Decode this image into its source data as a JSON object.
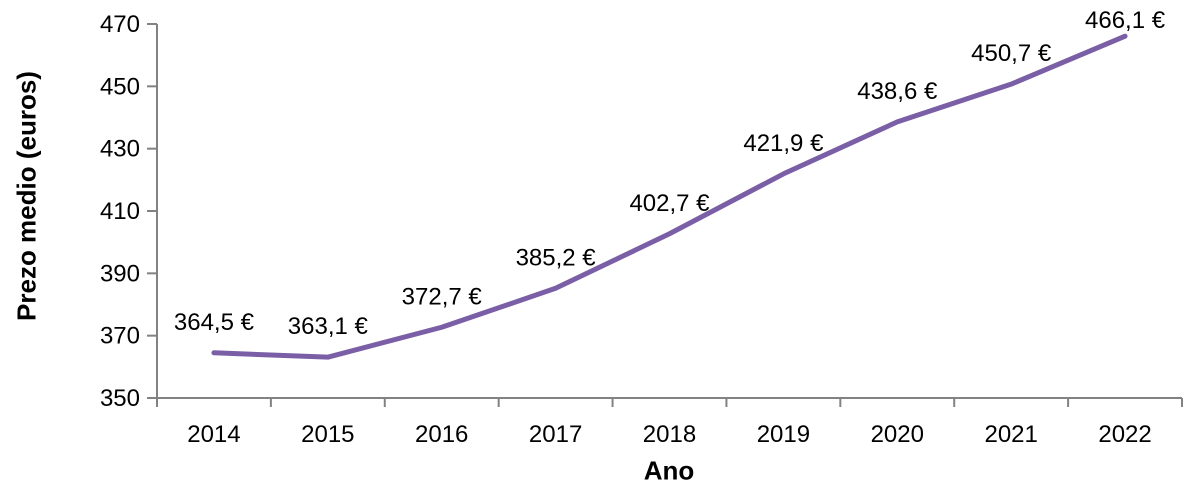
{
  "chart_data": {
    "type": "line",
    "categories": [
      "2014",
      "2015",
      "2016",
      "2017",
      "2018",
      "2019",
      "2020",
      "2021",
      "2022"
    ],
    "values": [
      364.5,
      363.1,
      372.7,
      385.2,
      402.7,
      421.9,
      438.6,
      450.7,
      466.1
    ],
    "point_labels": [
      "364,5 €",
      "363,1 €",
      "372,7 €",
      "385,2 €",
      "402,7 €",
      "421,9 €",
      "438,6 €",
      "450,7 €",
      "466,1 €"
    ],
    "xlabel": "Ano",
    "ylabel": "Prezo medio (euros)",
    "ylim": [
      350,
      470
    ],
    "ytick_step": 20,
    "yticks": [
      "350",
      "370",
      "390",
      "410",
      "430",
      "450",
      "470"
    ],
    "grid": false,
    "legend": "none",
    "line_color": "#7B5FA6",
    "axis_color": "#828282",
    "text_color": "#000000"
  }
}
